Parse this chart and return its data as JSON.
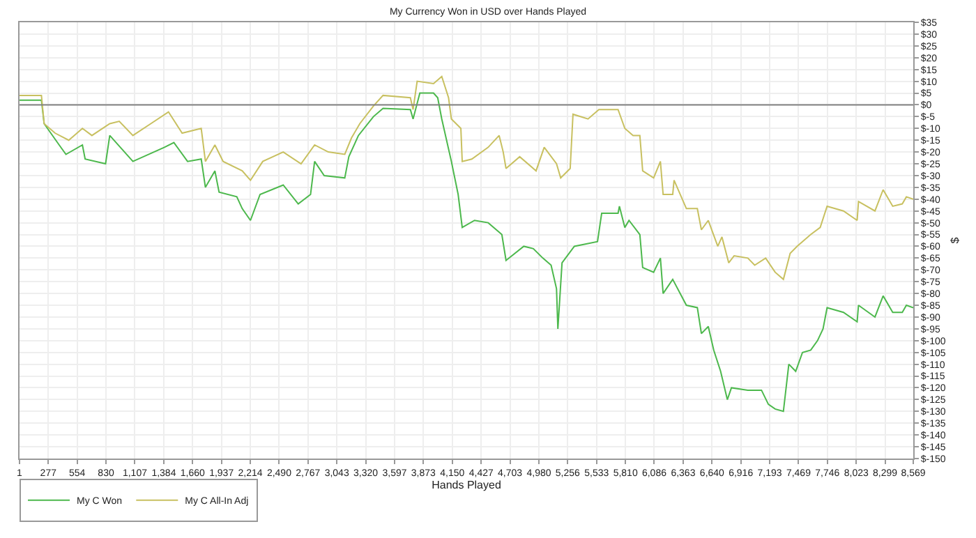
{
  "chart_data": {
    "type": "line",
    "title": "My Currency Won in USD over Hands Played",
    "xlabel": "Hands Played",
    "ylabel": "$",
    "series": [
      {
        "name": "My C Won",
        "color": "#4cb84c",
        "x": [
          1,
          211,
          237,
          381,
          446,
          604,
          630,
          826,
          866,
          1088,
          1390,
          1481,
          1612,
          1743,
          1783,
          1874,
          1914,
          2084,
          2136,
          2215,
          2307,
          2529,
          2673,
          2791,
          2830,
          2922,
          3119,
          3158,
          3250,
          3394,
          3486,
          3748,
          3774,
          3839,
          3970,
          4010,
          4049,
          4141,
          4206,
          4245,
          4363,
          4494,
          4625,
          4665,
          4835,
          4927,
          5018,
          5097,
          5149,
          5162,
          5202,
          5320,
          5542,
          5582,
          5739,
          5752,
          5804,
          5844,
          5948,
          5975,
          6080,
          6145,
          6171,
          6263,
          6394,
          6499,
          6538,
          6604,
          6656,
          6722,
          6787,
          6826,
          6983,
          7114,
          7180,
          7245,
          7324,
          7376,
          7442,
          7507,
          7586,
          7651,
          7704,
          7743,
          7900,
          8031,
          8044,
          8202,
          8280,
          8372,
          8464,
          8503,
          8569
        ],
        "values": [
          2,
          2,
          -8,
          -17,
          -21,
          -17,
          -23,
          -25,
          -13,
          -24,
          -18,
          -16,
          -24,
          -23,
          -35,
          -28,
          -37,
          -39,
          -44,
          -49,
          -38,
          -34,
          -42,
          -38,
          -24,
          -30,
          -31,
          -22,
          -13,
          -5,
          -1.5,
          -2,
          -6,
          5,
          5,
          3,
          -6,
          -24,
          -38,
          -52,
          -49,
          -50,
          -55,
          -66,
          -60,
          -61,
          -65,
          -68,
          -78,
          -95,
          -67,
          -60,
          -58,
          -46,
          -46,
          -43,
          -52,
          -49,
          -55,
          -69,
          -71,
          -65,
          -80,
          -74,
          -85,
          -86,
          -97,
          -94,
          -104,
          -113,
          -125,
          -120,
          -121,
          -121,
          -127,
          -129,
          -130,
          -110,
          -113,
          -105,
          -104,
          -100,
          -95,
          -86,
          -88,
          -92,
          -85,
          -90,
          -81,
          -88,
          -88,
          -85,
          -86
        ]
      },
      {
        "name": "My C All-In Adj",
        "color": "#c8c060",
        "x": [
          1,
          211,
          237,
          342,
          473,
          604,
          695,
          866,
          957,
          1088,
          1259,
          1429,
          1560,
          1743,
          1783,
          1874,
          1953,
          2136,
          2215,
          2333,
          2529,
          2700,
          2830,
          2961,
          3119,
          3184,
          3263,
          3394,
          3486,
          3748,
          3774,
          3813,
          3970,
          4049,
          4114,
          4141,
          4232,
          4245,
          4337,
          4494,
          4599,
          4638,
          4665,
          4796,
          4953,
          5031,
          5149,
          5189,
          5280,
          5307,
          5451,
          5555,
          5739,
          5804,
          5883,
          5948,
          5975,
          6080,
          6145,
          6171,
          6263,
          6276,
          6394,
          6499,
          6538,
          6604,
          6695,
          6735,
          6800,
          6852,
          6983,
          7049,
          7154,
          7245,
          7324,
          7389,
          7455,
          7586,
          7677,
          7743,
          7900,
          8031,
          8044,
          8202,
          8280,
          8372,
          8464,
          8503,
          8569
        ],
        "values": [
          4,
          4,
          -8,
          -12,
          -15,
          -10,
          -13,
          -8,
          -7,
          -13,
          -8,
          -3,
          -12,
          -10,
          -24,
          -17,
          -24,
          -28,
          -32,
          -24,
          -20,
          -25,
          -17,
          -20,
          -21,
          -14,
          -8,
          -0.5,
          4,
          3,
          -2,
          10,
          9,
          12,
          3,
          -6,
          -10,
          -24,
          -23,
          -18,
          -13,
          -20,
          -27,
          -22,
          -28,
          -18,
          -25,
          -31,
          -27,
          -4,
          -6,
          -2,
          -2,
          -10,
          -13,
          -13,
          -28,
          -31,
          -24,
          -38,
          -38,
          -32,
          -44,
          -44,
          -53,
          -49,
          -60,
          -56,
          -67,
          -64,
          -65,
          -68,
          -65,
          -71,
          -74,
          -63,
          -60,
          -55,
          -52,
          -43,
          -45,
          -49,
          -41,
          -45,
          -36,
          -43,
          -42,
          -39,
          -40
        ]
      }
    ],
    "xlim": [
      1,
      8569
    ],
    "xticks": [
      1,
      {
        "value": 277,
        "label": "277"
      },
      {
        "value": 554,
        "label": "554"
      },
      {
        "value": 830,
        "label": "830"
      },
      {
        "value": 1107,
        "label": "1,107"
      },
      {
        "value": 1384,
        "label": "1,384"
      },
      {
        "value": 1660,
        "label": "1,660"
      },
      {
        "value": 1937,
        "label": "1,937"
      },
      {
        "value": 2214,
        "label": "2,214"
      },
      {
        "value": 2490,
        "label": "2,490"
      },
      {
        "value": 2767,
        "label": "2,767"
      },
      {
        "value": 3043,
        "label": "3,043"
      },
      {
        "value": 3320,
        "label": "3,320"
      },
      {
        "value": 3597,
        "label": "3,597"
      },
      {
        "value": 3873,
        "label": "3,873"
      },
      {
        "value": 4150,
        "label": "4,150"
      },
      {
        "value": 4427,
        "label": "4,427"
      },
      {
        "value": 4703,
        "label": "4,703"
      },
      {
        "value": 4980,
        "label": "4,980"
      },
      {
        "value": 5256,
        "label": "5,256"
      },
      {
        "value": 5533,
        "label": "5,533"
      },
      {
        "value": 5810,
        "label": "5,810"
      },
      {
        "value": 6086,
        "label": "6,086"
      },
      {
        "value": 6363,
        "label": "6,363"
      },
      {
        "value": 6640,
        "label": "6,640"
      },
      {
        "value": 6916,
        "label": "6,916"
      },
      {
        "value": 7193,
        "label": "7,193"
      },
      {
        "value": 7469,
        "label": "7,469"
      },
      {
        "value": 7746,
        "label": "7,746"
      },
      {
        "value": 8023,
        "label": "8,023"
      },
      {
        "value": 8299,
        "label": "8,299"
      },
      {
        "value": 8569,
        "label": "8,569"
      }
    ],
    "ylim": [
      -150,
      35
    ],
    "yticks": [
      {
        "value": 35,
        "label": "$35"
      },
      {
        "value": 30,
        "label": "$30"
      },
      {
        "value": 25,
        "label": "$25"
      },
      {
        "value": 20,
        "label": "$20"
      },
      {
        "value": 15,
        "label": "$15"
      },
      {
        "value": 10,
        "label": "$10"
      },
      {
        "value": 5,
        "label": "$5"
      },
      {
        "value": 0,
        "label": "$0"
      },
      {
        "value": -5,
        "label": "$-5"
      },
      {
        "value": -10,
        "label": "$-10"
      },
      {
        "value": -15,
        "label": "$-15"
      },
      {
        "value": -20,
        "label": "$-20"
      },
      {
        "value": -25,
        "label": "$-25"
      },
      {
        "value": -30,
        "label": "$-30"
      },
      {
        "value": -35,
        "label": "$-35"
      },
      {
        "value": -40,
        "label": "$-40"
      },
      {
        "value": -45,
        "label": "$-45"
      },
      {
        "value": -50,
        "label": "$-50"
      },
      {
        "value": -55,
        "label": "$-55"
      },
      {
        "value": -60,
        "label": "$-60"
      },
      {
        "value": -65,
        "label": "$-65"
      },
      {
        "value": -70,
        "label": "$-70"
      },
      {
        "value": -75,
        "label": "$-75"
      },
      {
        "value": -80,
        "label": "$-80"
      },
      {
        "value": -85,
        "label": "$-85"
      },
      {
        "value": -90,
        "label": "$-90"
      },
      {
        "value": -95,
        "label": "$-95"
      },
      {
        "value": -100,
        "label": "$-100"
      },
      {
        "value": -105,
        "label": "$-105"
      },
      {
        "value": -110,
        "label": "$-110"
      },
      {
        "value": -115,
        "label": "$-115"
      },
      {
        "value": -120,
        "label": "$-120"
      },
      {
        "value": -125,
        "label": "$-125"
      },
      {
        "value": -130,
        "label": "$-130"
      },
      {
        "value": -135,
        "label": "$-135"
      },
      {
        "value": -140,
        "label": "$-140"
      },
      {
        "value": -145,
        "label": "$-145"
      },
      {
        "value": -150,
        "label": "$-150"
      }
    ],
    "ref_lines": [
      {
        "axis": "y",
        "value": 0,
        "color": "#808080"
      }
    ],
    "grid": true,
    "legend": "bottom left",
    "marker": "none",
    "line_style": "solid"
  }
}
